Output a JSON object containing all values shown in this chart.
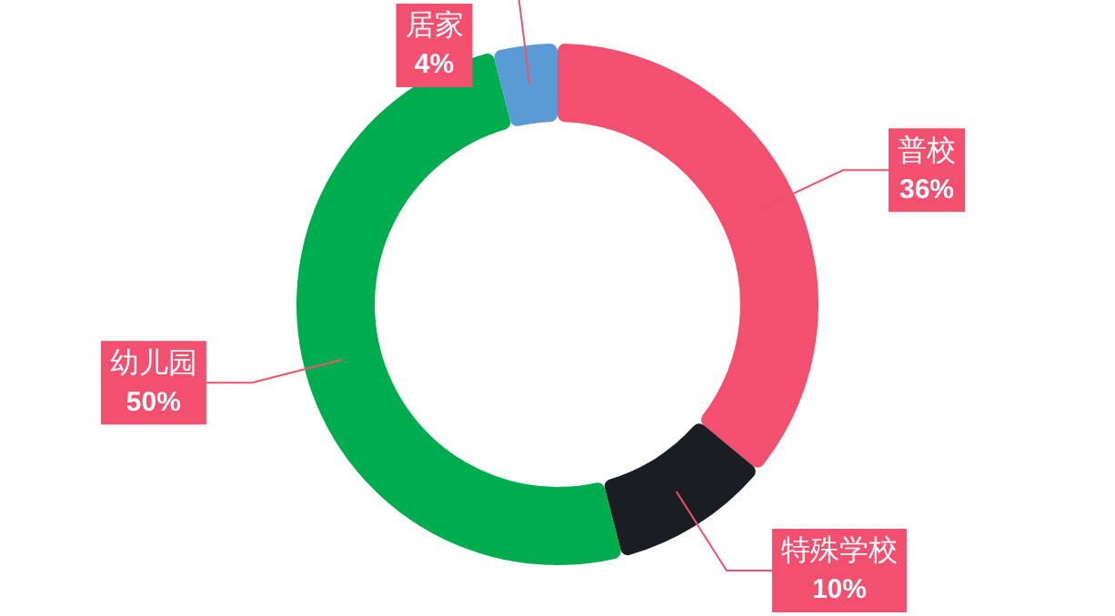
{
  "chart_data": {
    "type": "donut",
    "categories": [
      "普校",
      "特殊学校",
      "幼儿园",
      "居家"
    ],
    "values": [
      36,
      10,
      50,
      4
    ],
    "value_labels": [
      "36%",
      "10%",
      "50%",
      "4%"
    ],
    "colors": [
      "#f2506e",
      "#1a1d21",
      "#00ad4e",
      "#5b9bd5"
    ],
    "legend": false
  }
}
